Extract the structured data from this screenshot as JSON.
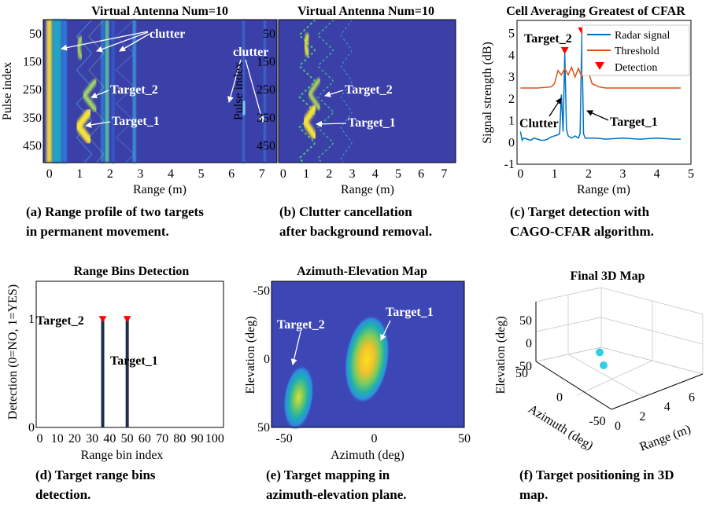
{
  "chart_data": [
    {
      "id": "a",
      "type": "heatmap",
      "title": "Virtual Antenna Num=10",
      "xlabel": "Range (m)",
      "ylabel": "Pulse index",
      "xlim": [
        -0.2,
        7.5
      ],
      "ylim": [
        510,
        0
      ],
      "xticks": [
        "0",
        "1",
        "2",
        "3",
        "4",
        "5",
        "6",
        "7"
      ],
      "yticks": [
        "50",
        "150",
        "250",
        "350",
        "450"
      ],
      "xtick_values": [
        0,
        1,
        2,
        3,
        4,
        5,
        6,
        7
      ],
      "ytick_values": [
        50,
        150,
        250,
        350,
        450
      ],
      "clutter_ranges_m": [
        0,
        0.5,
        1.9,
        2.8,
        6.4,
        7.1
      ],
      "target_1": {
        "range_m": 0.95,
        "pulse": 380
      },
      "target_2": {
        "range_m": 1.15,
        "pulse": 270
      },
      "annotations": [
        "clutter",
        "clutter",
        "Target_2",
        "Target_1"
      ],
      "caption_lines": [
        "(a) Range profile of two targets",
        "in permanent movement."
      ]
    },
    {
      "id": "b",
      "type": "heatmap",
      "title": "Virtual Antenna Num=10",
      "xlabel": "Range (m)",
      "ylabel": "Pulse index",
      "xlim": [
        -0.2,
        7.5
      ],
      "ylim": [
        510,
        0
      ],
      "xticks": [
        "0",
        "1",
        "2",
        "3",
        "4",
        "5",
        "6",
        "7"
      ],
      "yticks": [
        "50",
        "150",
        "250",
        "350",
        "450"
      ],
      "xtick_values": [
        0,
        1,
        2,
        3,
        4,
        5,
        6,
        7
      ],
      "ytick_values": [
        50,
        150,
        250,
        350,
        450
      ],
      "target_1": {
        "range_m": 0.95,
        "pulse": 365
      },
      "target_2": {
        "range_m": 1.15,
        "pulse": 265
      },
      "annotations": [
        "Target_2",
        "Target_1"
      ],
      "caption_lines": [
        "(b) Clutter cancellation",
        "after background removal."
      ]
    },
    {
      "id": "c",
      "type": "line",
      "title": "Cell Averaging Greatest of CFAR",
      "xlabel": "Range (m)",
      "ylabel": "Signal strength (dB)",
      "xlim": [
        -0.1,
        5
      ],
      "ylim": [
        -1,
        5.6
      ],
      "xticks": [
        "0",
        "1",
        "2",
        "3",
        "4",
        "5"
      ],
      "yticks": [
        "-1",
        "0",
        "1",
        "2",
        "3",
        "4",
        "5"
      ],
      "xtick_values": [
        0,
        1,
        2,
        3,
        4,
        5
      ],
      "ytick_values": [
        -1,
        0,
        1,
        2,
        3,
        4,
        5
      ],
      "series": [
        {
          "name": "Radar signal",
          "color": "#0072BD",
          "x": [
            0,
            0.05,
            0.1,
            0.2,
            0.3,
            0.4,
            0.5,
            0.6,
            0.7,
            0.8,
            0.9,
            1.0,
            1.1,
            1.15,
            1.2,
            1.25,
            1.3,
            1.35,
            1.4,
            1.5,
            1.6,
            1.7,
            1.75,
            1.8,
            1.85,
            1.9,
            2.0,
            2.2,
            2.5,
            3.0,
            3.5,
            4.0,
            4.5,
            4.7
          ],
          "y": [
            0.5,
            0.1,
            0.2,
            0.15,
            0.1,
            0.2,
            0.15,
            0.1,
            0.1,
            0.15,
            0.25,
            0.3,
            0.35,
            0.4,
            2.2,
            0.5,
            4.1,
            0.6,
            0.3,
            0.2,
            0.3,
            0.2,
            0.4,
            5.0,
            0.4,
            0.2,
            0.2,
            0.2,
            0.15,
            0.2,
            0.15,
            0.2,
            0.15,
            0.15
          ]
        },
        {
          "name": "Threshold",
          "color": "#D95319",
          "x": [
            0,
            0.5,
            0.9,
            1.0,
            1.1,
            1.2,
            1.3,
            1.4,
            1.5,
            1.6,
            1.7,
            1.8,
            1.9,
            2.0,
            2.1,
            2.3,
            2.5,
            3.0,
            3.5,
            4.0,
            4.5,
            4.7
          ],
          "y": [
            2.5,
            2.5,
            2.55,
            2.7,
            3.3,
            3.1,
            3.4,
            3.1,
            3.45,
            3.0,
            3.4,
            3.0,
            3.5,
            3.2,
            2.7,
            2.55,
            2.5,
            2.5,
            2.5,
            2.5,
            2.5,
            2.5
          ]
        }
      ],
      "detections": [
        {
          "x": 1.3,
          "y": 4.2
        },
        {
          "x": 1.8,
          "y": 5.1
        }
      ],
      "legend": [
        "Radar signal",
        "Threshold",
        "Detection"
      ],
      "legend_position": "top-right",
      "annotations": [
        "Target_2",
        "Clutter",
        "Target_1"
      ],
      "caption_lines": [
        "(c) Target detection with",
        "CAGO-CFAR algorithm."
      ]
    },
    {
      "id": "d",
      "type": "bar",
      "title": "Range Bins Detection",
      "xlabel": "Range bin index",
      "ylabel": "Detection (0=NO, 1=YES)",
      "xlim": [
        -2,
        105
      ],
      "ylim": [
        0,
        1.35
      ],
      "xticks": [
        "0",
        "10",
        "20",
        "30",
        "40",
        "50",
        "60",
        "70",
        "80",
        "90",
        "100"
      ],
      "yticks": [
        "0",
        "1"
      ],
      "xtick_values": [
        0,
        10,
        20,
        30,
        40,
        50,
        60,
        70,
        80,
        90,
        100
      ],
      "ytick_values": [
        0,
        1
      ],
      "x": [
        36,
        50
      ],
      "values": [
        1,
        1
      ],
      "annotations": [
        "Target_2",
        "Target_1"
      ],
      "caption_lines": [
        "(d) Target range bins",
        "detection."
      ]
    },
    {
      "id": "e",
      "type": "heatmap",
      "title": "Azimuth-Elevation Map",
      "xlabel": "Azimuth (deg)",
      "ylabel": "Elevation (deg)",
      "xlim": [
        -57,
        50
      ],
      "ylim": [
        -57,
        50
      ],
      "xticks": [
        "-50",
        "0",
        "50"
      ],
      "yticks": [
        "-50",
        "0",
        "50"
      ],
      "xtick_values": [
        -50,
        0,
        50
      ],
      "ytick_values": [
        -50,
        0,
        50
      ],
      "blobs": [
        {
          "label": "Target_1",
          "azimuth": -4,
          "elevation": 0
        },
        {
          "label": "Target_2",
          "azimuth": -42,
          "elevation": 28
        }
      ],
      "annotations": [
        "Target_2",
        "Target_1"
      ],
      "caption_lines": [
        "(e) Target mapping in",
        "azimuth-elevation plane."
      ]
    },
    {
      "id": "f",
      "type": "scatter",
      "title": "Final 3D Map",
      "xlabel": "Range (m)",
      "ylabel": "Azimuth (deg)",
      "zlabel": "Elevation (deg)",
      "xticks": [
        "0",
        "2",
        "4",
        "6"
      ],
      "yticks": [
        "50",
        "0",
        "-50"
      ],
      "zticks": [
        "50",
        "0",
        "-50"
      ],
      "xtick_values": [
        0,
        2,
        4,
        6
      ],
      "ytick_values": [
        50,
        0,
        -50
      ],
      "ztick_values": [
        50,
        0,
        -50
      ],
      "points": [
        {
          "range": 1.2,
          "azimuth": -20,
          "elevation": -10
        },
        {
          "range": 1.8,
          "azimuth": -5,
          "elevation": -5
        }
      ],
      "point_color": "#35CDE6",
      "caption_lines": [
        "(f) Target positioning in 3D",
        "map."
      ]
    }
  ]
}
